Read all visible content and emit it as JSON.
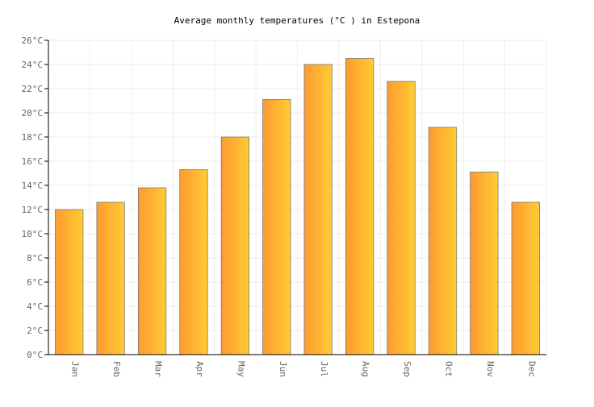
{
  "chart_data": {
    "type": "bar",
    "title": "Average monthly temperatures (°C ) in Estepona",
    "categories": [
      "Jan",
      "Feb",
      "Mar",
      "Apr",
      "May",
      "Jun",
      "Jul",
      "Aug",
      "Sep",
      "Oct",
      "Nov",
      "Dec"
    ],
    "values": [
      12.0,
      12.6,
      13.8,
      15.3,
      18.0,
      21.1,
      24.0,
      24.5,
      22.6,
      18.8,
      15.1,
      12.6
    ],
    "ylim": [
      0,
      26
    ],
    "yticks": [
      0,
      2,
      4,
      6,
      8,
      10,
      12,
      14,
      16,
      18,
      20,
      22,
      24,
      26
    ],
    "ytick_labels": [
      "0°C",
      "2°C",
      "4°C",
      "6°C",
      "8°C",
      "10°C",
      "12°C",
      "14°C",
      "16°C",
      "18°C",
      "20°C",
      "22°C",
      "24°C",
      "26°C"
    ],
    "grid": true,
    "colors": {
      "bar_left": "#ff9a30",
      "bar_right": "#ffcc33",
      "bar_stroke": "#777777"
    }
  }
}
